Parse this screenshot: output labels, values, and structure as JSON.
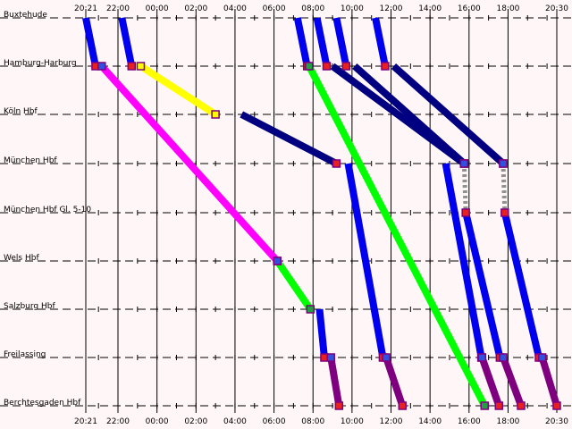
{
  "stations": [
    "Buxtehude",
    "Hamburg-Harburg",
    "Köln Hbf",
    "München Hbf",
    "München Hbf Gl. 5-10",
    "Wels Hbf",
    "Salzburg Hbf",
    "Freilassing",
    "Berchtesgaden Hbf"
  ],
  "time_axis": {
    "start": "20:21",
    "end": "20:30",
    "labels": [
      "20:21",
      "22:00",
      "00:00",
      "02:00",
      "04:00",
      "06:00",
      "08:00",
      "10:00",
      "12:00",
      "14:00",
      "16:00",
      "18:00",
      "20:30"
    ]
  },
  "colors": {
    "background": "#fff7f7",
    "grid": "#000000",
    "blue": "#0000ee",
    "navy": "#000080",
    "yellow": "#ffff00",
    "magenta": "#ff00ff",
    "green": "#00ff00",
    "purple": "#7f007f",
    "gray": "#909090",
    "stop_fill": "#e82020",
    "stop_fill_alt": "#3050e0",
    "stop_fill_green": "#20a040",
    "stop_fill_yellow": "#ffff00",
    "stop_border": "#7f007f"
  },
  "chart_data": {
    "type": "line",
    "title": "",
    "xlabel": "",
    "ylabel": "",
    "x_unit": "time of day",
    "x_range": [
      "20:21",
      "20:30 (next day)"
    ],
    "stations": [
      "Buxtehude",
      "Hamburg-Harburg",
      "Köln Hbf",
      "München Hbf",
      "München Hbf Gl. 5-10",
      "Wels Hbf",
      "Salzburg Hbf",
      "Freilassing",
      "Berchtesgaden Hbf"
    ],
    "legs": [
      {
        "color": "blue",
        "from_station": "Buxtehude",
        "from_time": "20:21",
        "to_station": "Hamburg-Harburg",
        "to_time": "20:51",
        "dep_marker": "",
        "arr_marker": "stop_fill"
      },
      {
        "color": "blue",
        "from_station": "Buxtehude",
        "from_time": "22:12",
        "to_station": "Hamburg-Harburg",
        "to_time": "22:42",
        "dep_marker": "",
        "arr_marker": "stop_fill"
      },
      {
        "color": "blue",
        "from_station": "Buxtehude",
        "from_time": "07:12",
        "to_station": "Hamburg-Harburg",
        "to_time": "07:42",
        "dep_marker": "",
        "arr_marker": "stop_fill"
      },
      {
        "color": "blue",
        "from_station": "Buxtehude",
        "from_time": "08:12",
        "to_station": "Hamburg-Harburg",
        "to_time": "08:42",
        "dep_marker": "",
        "arr_marker": "stop_fill"
      },
      {
        "color": "blue",
        "from_station": "Buxtehude",
        "from_time": "09:12",
        "to_station": "Hamburg-Harburg",
        "to_time": "09:42",
        "dep_marker": "",
        "arr_marker": "stop_fill"
      },
      {
        "color": "blue",
        "from_station": "Buxtehude",
        "from_time": "11:12",
        "to_station": "Hamburg-Harburg",
        "to_time": "11:42",
        "dep_marker": "",
        "arr_marker": "stop_fill"
      },
      {
        "color": "magenta",
        "from_station": "Hamburg-Harburg",
        "from_time": "21:10",
        "to_station": "Wels Hbf",
        "to_time": "06:10",
        "dep_marker": "stop_fill_alt",
        "arr_marker": "stop_fill"
      },
      {
        "color": "yellow",
        "from_station": "Hamburg-Harburg",
        "from_time": "23:10",
        "to_station": "Köln Hbf",
        "to_time": "03:00",
        "dep_marker": "stop_fill_yellow",
        "arr_marker": "stop_fill_yellow"
      },
      {
        "color": "green",
        "from_station": "Hamburg-Harburg",
        "from_time": "07:48",
        "to_station": "Berchtesgaden Hbf",
        "to_time": "16:48",
        "dep_marker": "stop_fill_green",
        "arr_marker": "stop_fill_green"
      },
      {
        "color": "navy",
        "from_station": "Hamburg-Harburg",
        "from_time": "09:00",
        "to_station": "München Hbf",
        "to_time": "15:45",
        "dep_marker": "",
        "arr_marker": "stop_fill"
      },
      {
        "color": "navy",
        "from_station": "Hamburg-Harburg",
        "from_time": "10:08",
        "to_station": "München Hbf",
        "to_time": "15:45",
        "dep_marker": "",
        "arr_marker": "stop_fill"
      },
      {
        "color": "navy",
        "from_station": "Hamburg-Harburg",
        "from_time": "12:08",
        "to_station": "München Hbf",
        "to_time": "17:45",
        "dep_marker": "",
        "arr_marker": "stop_fill"
      },
      {
        "color": "navy",
        "from_station": "Köln Hbf",
        "from_time": "04:20",
        "to_station": "München Hbf",
        "to_time": "09:12",
        "dep_marker": "",
        "arr_marker": "stop_fill"
      },
      {
        "color": "green",
        "from_station": "Wels Hbf",
        "from_time": "06:10",
        "to_station": "Salzburg Hbf",
        "to_time": "07:52",
        "dep_marker": "stop_fill_alt",
        "arr_marker": "stop_fill_green"
      },
      {
        "color": "blue",
        "from_station": "Salzburg Hbf",
        "from_time": "08:20",
        "to_station": "Freilassing",
        "to_time": "08:35",
        "dep_marker": "",
        "arr_marker": "stop_fill"
      },
      {
        "color": "purple",
        "from_station": "Freilassing",
        "from_time": "08:55",
        "to_station": "Berchtesgaden Hbf",
        "to_time": "09:20",
        "dep_marker": "stop_fill_alt",
        "arr_marker": "stop_fill"
      },
      {
        "color": "blue",
        "from_station": "München Hbf",
        "from_time": "09:48",
        "to_station": "Freilassing",
        "to_time": "11:35",
        "dep_marker": "",
        "arr_marker": "stop_fill"
      },
      {
        "color": "purple",
        "from_station": "Freilassing",
        "from_time": "11:45",
        "to_station": "Berchtesgaden Hbf",
        "to_time": "12:35",
        "dep_marker": "stop_fill_alt",
        "arr_marker": "stop_fill"
      },
      {
        "color": "blue",
        "from_station": "München Hbf",
        "from_time": "14:48",
        "to_station": "Freilassing",
        "to_time": "16:38",
        "dep_marker": "",
        "arr_marker": "stop_fill"
      },
      {
        "color": "purple",
        "from_station": "Freilassing",
        "from_time": "16:40",
        "to_station": "Berchtesgaden Hbf",
        "to_time": "17:32",
        "dep_marker": "stop_fill_alt",
        "arr_marker": "stop_fill"
      },
      {
        "color": "gray",
        "from_station": "München Hbf",
        "from_time": "15:45",
        "to_station": "München Hbf Gl. 5-10",
        "to_time": "15:50",
        "dep_marker": "stop_fill_alt",
        "arr_marker": "stop_fill",
        "dashed": true
      },
      {
        "color": "blue",
        "from_station": "München Hbf Gl. 5-10",
        "from_time": "15:50",
        "to_station": "Freilassing",
        "to_time": "17:35",
        "dep_marker": "",
        "arr_marker": "stop_fill"
      },
      {
        "color": "purple",
        "from_station": "Freilassing",
        "from_time": "17:45",
        "to_station": "Berchtesgaden Hbf",
        "to_time": "18:40",
        "dep_marker": "stop_fill_alt",
        "arr_marker": "stop_fill"
      },
      {
        "color": "gray",
        "from_station": "München Hbf",
        "from_time": "17:45",
        "to_station": "München Hbf Gl. 5-10",
        "to_time": "17:50",
        "dep_marker": "stop_fill_alt",
        "arr_marker": "stop_fill",
        "dashed": true
      },
      {
        "color": "blue",
        "from_station": "München Hbf Gl. 5-10",
        "from_time": "17:50",
        "to_station": "Freilassing",
        "to_time": "19:35",
        "dep_marker": "",
        "arr_marker": "stop_fill"
      },
      {
        "color": "purple",
        "from_station": "Freilassing",
        "from_time": "19:45",
        "to_station": "Berchtesgaden Hbf",
        "to_time": "20:30",
        "dep_marker": "stop_fill_alt",
        "arr_marker": "stop_fill"
      }
    ]
  }
}
